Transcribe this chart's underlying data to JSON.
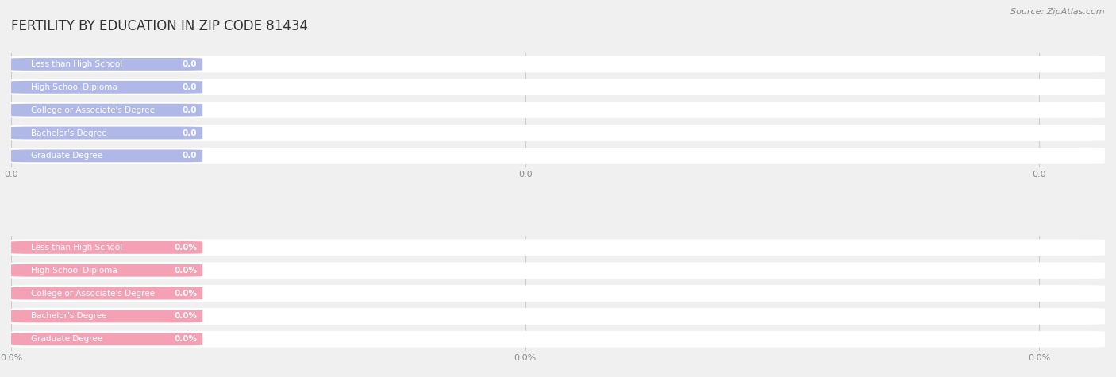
{
  "title": "FERTILITY BY EDUCATION IN ZIP CODE 81434",
  "source": "Source: ZipAtlas.com",
  "background_color": "#f0f0f0",
  "top_section": {
    "categories": [
      "Less than High School",
      "High School Diploma",
      "College or Associate's Degree",
      "Bachelor's Degree",
      "Graduate Degree"
    ],
    "values": [
      0.0,
      0.0,
      0.0,
      0.0,
      0.0
    ],
    "bar_color": "#b0b8e8",
    "label_color": "#444444",
    "value_color": "#ffffff",
    "xtick_labels": [
      "0.0",
      "0.0",
      "0.0"
    ]
  },
  "bottom_section": {
    "categories": [
      "Less than High School",
      "High School Diploma",
      "College or Associate's Degree",
      "Bachelor's Degree",
      "Graduate Degree"
    ],
    "values": [
      0.0,
      0.0,
      0.0,
      0.0,
      0.0
    ],
    "bar_color": "#f4a0b5",
    "label_color": "#444444",
    "value_color": "#ffffff",
    "xtick_labels": [
      "0.0%",
      "0.0%",
      "0.0%"
    ]
  },
  "figsize": [
    14.06,
    4.75
  ],
  "dpi": 100
}
